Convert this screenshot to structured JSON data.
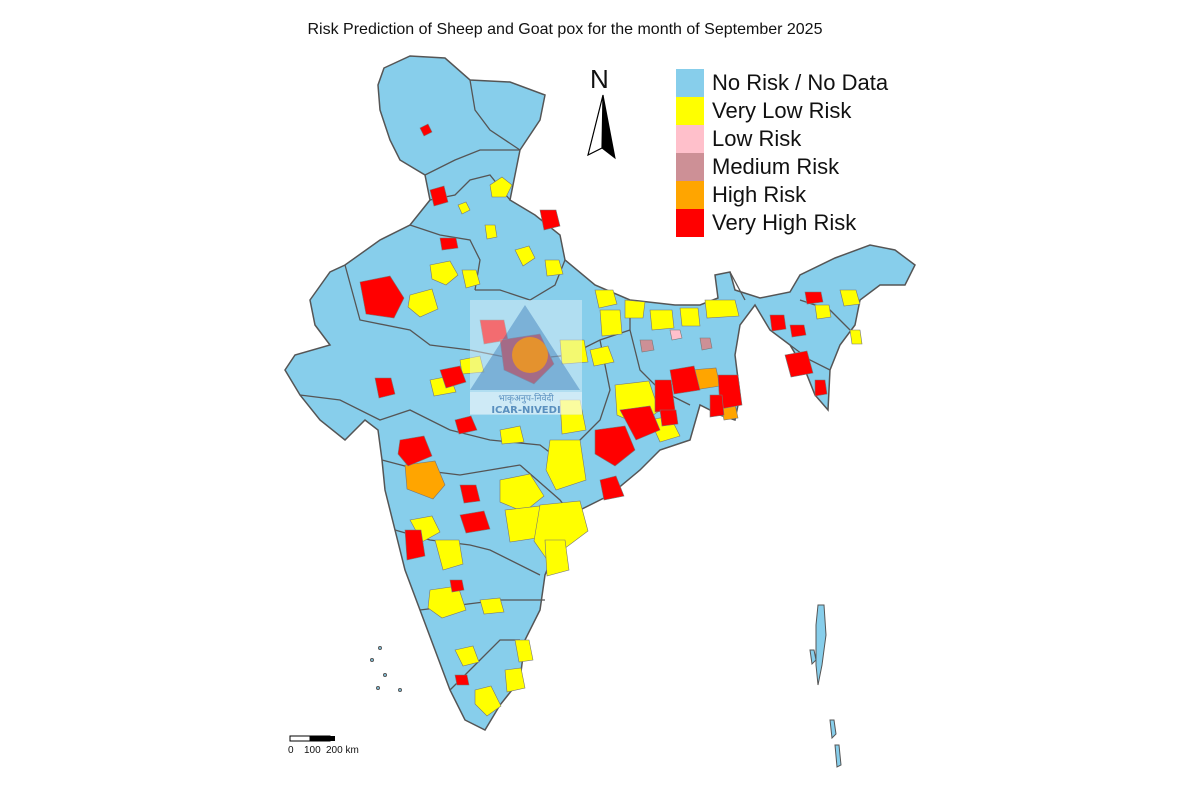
{
  "title": "Risk Prediction of Sheep and Goat pox for the month of September 2025",
  "north_label": "N",
  "legend": [
    {
      "label": "No Risk / No Data",
      "color": "#87CEEB"
    },
    {
      "label": "Very Low Risk",
      "color": "#FFFF00"
    },
    {
      "label": "Low Risk",
      "color": "#FFC0CB"
    },
    {
      "label": "Medium Risk",
      "color": "#CD9096"
    },
    {
      "label": "High Risk",
      "color": "#FFA500"
    },
    {
      "label": "Very High Risk",
      "color": "#FF0000"
    }
  ],
  "scale_bar": {
    "tick_0": "0",
    "tick_mid": "100",
    "tick_end": "200 km"
  },
  "watermark": {
    "text_line1": "भाकृअनुप-निवेदी",
    "text_line2": "ICAR-NIVEDI"
  },
  "colors": {
    "border": "#555555",
    "base": "#87CEEB"
  }
}
